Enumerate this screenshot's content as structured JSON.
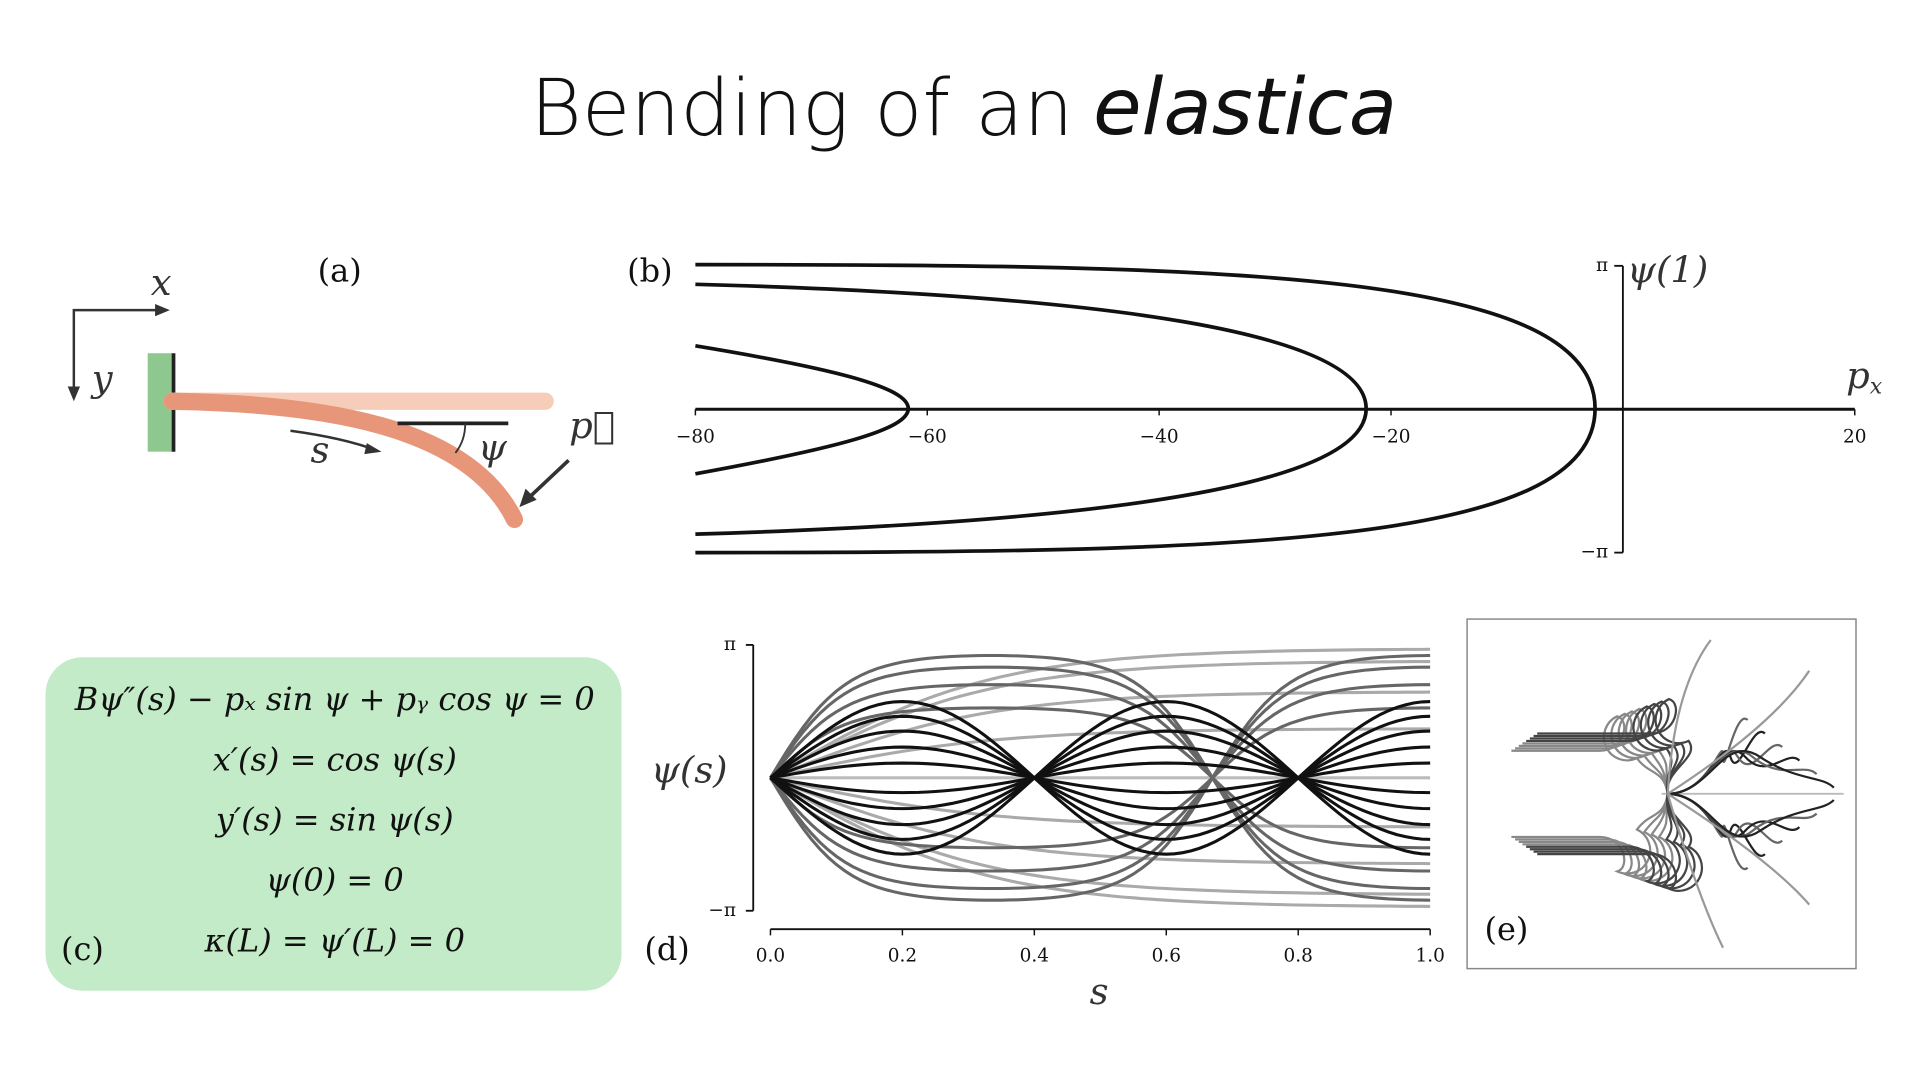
{
  "title": {
    "text": "Bending of an",
    "emphasis": "elastica"
  },
  "panel_a": {
    "label": "(a)",
    "x_axis": "x",
    "y_axis": "y",
    "arc_length": "s",
    "angle": "ψ",
    "force": "p⃗"
  },
  "panel_b": {
    "label": "(b)",
    "xlim": [
      -80,
      20
    ],
    "ylim": [
      -3.14159,
      3.14159
    ],
    "xticks": [
      {
        "value": -80,
        "label": "−80"
      },
      {
        "value": -60,
        "label": "−60"
      },
      {
        "value": -40,
        "label": "−40"
      },
      {
        "value": -20,
        "label": "−20"
      },
      20
    ],
    "yticks": [
      {
        "value": -3.14159,
        "label": "−π"
      },
      {
        "value": 3.14159,
        "label": "π"
      }
    ],
    "xlabel": {
      "symbol": "p",
      "subscript": "x"
    },
    "ylabel": "ψ(1)"
  },
  "panel_c": {
    "label": "(c)",
    "equations": [
      "Bψ″(s) − pₓ sin ψ + pᵧ cos ψ = 0",
      "x′(s) = cos ψ(s)",
      "y′(s) = sin ψ(s)",
      "ψ(0) = 0",
      "κ(L) = ψ′(L) = 0"
    ]
  },
  "panel_d": {
    "label": "(d)",
    "xlim": [
      0,
      1
    ],
    "ylim": [
      -3.14159,
      3.14159
    ],
    "xticks": [
      {
        "value": 0,
        "label": "0.0"
      },
      0.2,
      0.4,
      0.6,
      0.8,
      {
        "value": 1,
        "label": "1.0"
      }
    ],
    "yticks": [
      {
        "value": -3.14159,
        "label": "−π"
      },
      {
        "value": 3.14159,
        "label": "π"
      }
    ],
    "xlabel": "s",
    "ylabel": "ψ(s)"
  },
  "panel_e": {
    "label": "(e)"
  }
}
